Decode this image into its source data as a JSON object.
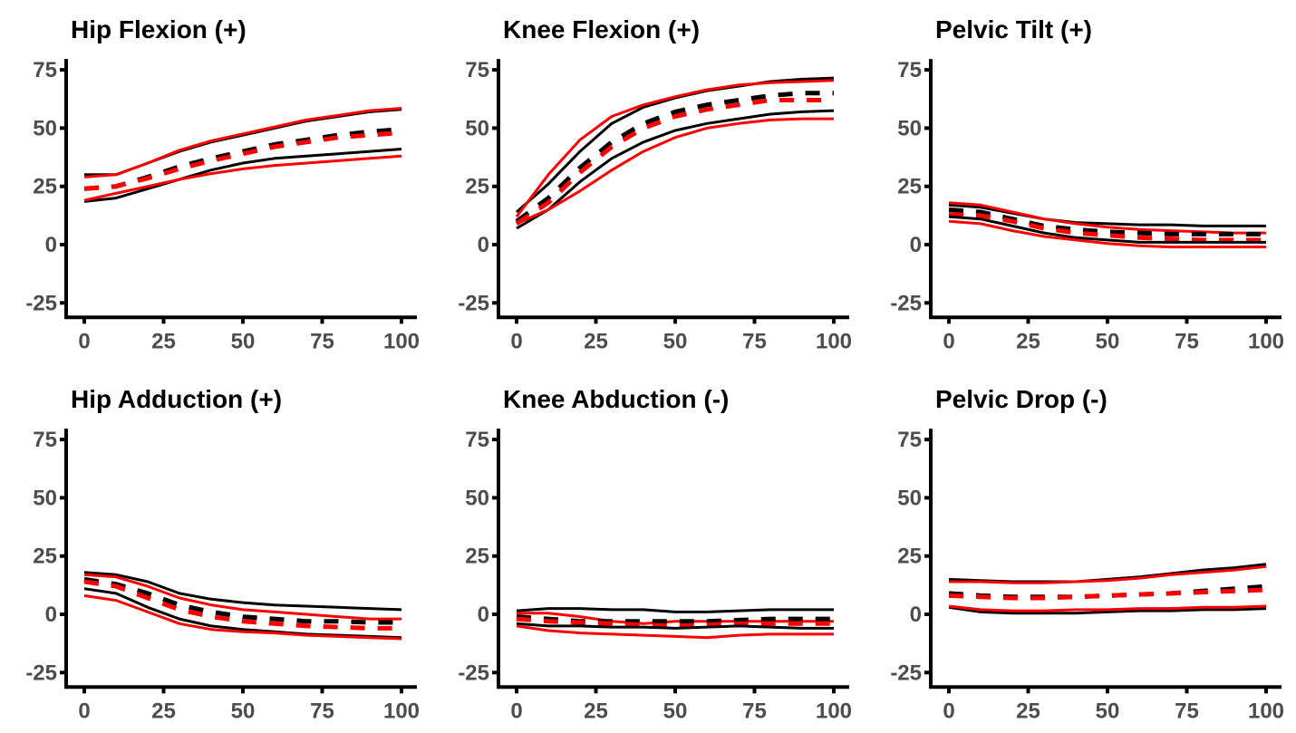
{
  "chart_data": [
    {
      "type": "line",
      "title": "Hip Flexion (+)",
      "xlim": [
        0,
        100
      ],
      "ylim": [
        -25,
        75
      ],
      "xticks": [
        "0",
        "25",
        "50",
        "75",
        "100"
      ],
      "yticks": [
        "-25",
        "0",
        "25",
        "50",
        "75"
      ],
      "x": [
        0,
        10,
        20,
        30,
        40,
        50,
        60,
        70,
        80,
        90,
        100
      ],
      "series": [
        {
          "color": "#000000",
          "style": "solid",
          "values": [
            30,
            30,
            35,
            40,
            44,
            47,
            50,
            53,
            55,
            57,
            58
          ]
        },
        {
          "color": "#ff0000",
          "style": "solid",
          "values": [
            29,
            30,
            35,
            40.5,
            44.5,
            47.5,
            50.5,
            53.5,
            55.5,
            57.5,
            58.5
          ]
        },
        {
          "color": "#000000",
          "style": "dashed",
          "values": [
            24,
            25,
            29,
            33.5,
            37,
            40,
            43,
            45,
            47,
            48.5,
            49.5
          ]
        },
        {
          "color": "#ff0000",
          "style": "dashed",
          "values": [
            24,
            25,
            28.5,
            32.5,
            36,
            39,
            42,
            44,
            46,
            47,
            48
          ]
        },
        {
          "color": "#000000",
          "style": "solid",
          "values": [
            18.5,
            20,
            24,
            28,
            32,
            35,
            37,
            38,
            39,
            40,
            41
          ]
        },
        {
          "color": "#ff0000",
          "style": "solid",
          "values": [
            19,
            22,
            25,
            28,
            30.5,
            32.5,
            34,
            35,
            36,
            37,
            38
          ]
        }
      ]
    },
    {
      "type": "line",
      "title": "Knee Flexion (+)",
      "xlim": [
        0,
        100
      ],
      "ylim": [
        -25,
        75
      ],
      "xticks": [
        "0",
        "25",
        "50",
        "75",
        "100"
      ],
      "yticks": [
        "-25",
        "0",
        "25",
        "50",
        "75"
      ],
      "x": [
        0,
        10,
        20,
        30,
        40,
        50,
        60,
        70,
        80,
        90,
        100
      ],
      "series": [
        {
          "color": "#000000",
          "style": "solid",
          "values": [
            14,
            26,
            40,
            52,
            59,
            63,
            66,
            68,
            70,
            71,
            71.5
          ]
        },
        {
          "color": "#ff0000",
          "style": "solid",
          "values": [
            12,
            30,
            45,
            55,
            60,
            63.5,
            66.5,
            68.5,
            69.5,
            70,
            70.5
          ]
        },
        {
          "color": "#000000",
          "style": "dashed",
          "values": [
            10,
            20,
            33,
            44,
            52,
            57,
            60,
            62,
            64,
            65,
            65
          ]
        },
        {
          "color": "#ff0000",
          "style": "dashed",
          "values": [
            9,
            18,
            31,
            42,
            50,
            55,
            58,
            60,
            62,
            62,
            62
          ]
        },
        {
          "color": "#000000",
          "style": "solid",
          "values": [
            7,
            15,
            27,
            37,
            44,
            49,
            52,
            54,
            56,
            57,
            57.5
          ]
        },
        {
          "color": "#ff0000",
          "style": "solid",
          "values": [
            9,
            15,
            23,
            32,
            40,
            46,
            50,
            52,
            53.5,
            54,
            54
          ]
        }
      ]
    },
    {
      "type": "line",
      "title": "Pelvic Tilt (+)",
      "xlim": [
        0,
        100
      ],
      "ylim": [
        -25,
        75
      ],
      "xticks": [
        "0",
        "25",
        "50",
        "75",
        "100"
      ],
      "yticks": [
        "-25",
        "0",
        "25",
        "50",
        "75"
      ],
      "x": [
        0,
        10,
        20,
        30,
        40,
        50,
        60,
        70,
        80,
        90,
        100
      ],
      "series": [
        {
          "color": "#000000",
          "style": "solid",
          "values": [
            17,
            16,
            13.5,
            11,
            9.5,
            9,
            8.5,
            8.5,
            8,
            8,
            8
          ]
        },
        {
          "color": "#ff0000",
          "style": "solid",
          "values": [
            18,
            17,
            14,
            11,
            9,
            7.5,
            6.5,
            6,
            5.5,
            5,
            5
          ]
        },
        {
          "color": "#000000",
          "style": "dashed",
          "values": [
            15,
            14,
            11,
            8,
            6.5,
            5.5,
            5,
            4.5,
            4.5,
            4.5,
            4.5
          ]
        },
        {
          "color": "#ff0000",
          "style": "dashed",
          "values": [
            13,
            12.5,
            10,
            7,
            5,
            4,
            3,
            2.5,
            2,
            2,
            2
          ]
        },
        {
          "color": "#000000",
          "style": "solid",
          "values": [
            12,
            11,
            8,
            5,
            3,
            2,
            1,
            1,
            1,
            1,
            1
          ]
        },
        {
          "color": "#ff0000",
          "style": "solid",
          "values": [
            10,
            9,
            6,
            3.5,
            2,
            0.5,
            -0.5,
            -1,
            -1,
            -1,
            -1
          ]
        }
      ]
    },
    {
      "type": "line",
      "title": "Hip Adduction (+)",
      "xlim": [
        0,
        100
      ],
      "ylim": [
        -25,
        75
      ],
      "xticks": [
        "0",
        "25",
        "50",
        "75",
        "100"
      ],
      "yticks": [
        "-25",
        "0",
        "25",
        "50",
        "75"
      ],
      "x": [
        0,
        10,
        20,
        30,
        40,
        50,
        60,
        70,
        80,
        90,
        100
      ],
      "series": [
        {
          "color": "#000000",
          "style": "solid",
          "values": [
            18,
            17,
            14,
            9,
            6.5,
            5,
            4,
            3.5,
            3,
            2.5,
            2
          ]
        },
        {
          "color": "#ff0000",
          "style": "solid",
          "values": [
            17,
            16,
            12,
            7,
            4,
            2,
            1,
            0,
            -1,
            -2,
            -2
          ]
        },
        {
          "color": "#000000",
          "style": "dashed",
          "values": [
            15,
            13,
            9,
            4,
            1,
            -1,
            -2,
            -3,
            -3,
            -3.5,
            -3.5
          ]
        },
        {
          "color": "#ff0000",
          "style": "dashed",
          "values": [
            14,
            12,
            7,
            2,
            -1,
            -3,
            -4,
            -5,
            -5.5,
            -6,
            -6
          ]
        },
        {
          "color": "#000000",
          "style": "solid",
          "values": [
            11,
            9,
            3,
            -2,
            -5,
            -6.5,
            -7.5,
            -8.5,
            -9,
            -9.5,
            -10
          ]
        },
        {
          "color": "#ff0000",
          "style": "solid",
          "values": [
            8,
            6,
            1,
            -4,
            -6.5,
            -7.5,
            -8,
            -9,
            -9.5,
            -10,
            -10.5
          ]
        }
      ]
    },
    {
      "type": "line",
      "title": "Knee Abduction (-)",
      "xlim": [
        0,
        100
      ],
      "ylim": [
        -25,
        75
      ],
      "xticks": [
        "0",
        "25",
        "50",
        "75",
        "100"
      ],
      "yticks": [
        "-25",
        "0",
        "25",
        "50",
        "75"
      ],
      "x": [
        0,
        10,
        20,
        30,
        40,
        50,
        60,
        70,
        80,
        90,
        100
      ],
      "series": [
        {
          "color": "#000000",
          "style": "solid",
          "values": [
            1.5,
            2.5,
            2.5,
            2,
            2,
            1,
            1,
            1.5,
            2,
            2,
            2
          ]
        },
        {
          "color": "#ff0000",
          "style": "solid",
          "values": [
            0.5,
            0.5,
            -1,
            -3,
            -4,
            -3,
            -3,
            -3,
            -3,
            -3,
            -3
          ]
        },
        {
          "color": "#000000",
          "style": "dashed",
          "values": [
            -1,
            -2,
            -3,
            -3,
            -3,
            -3,
            -3,
            -2.5,
            -2,
            -2,
            -2
          ]
        },
        {
          "color": "#ff0000",
          "style": "dashed",
          "values": [
            -2,
            -3,
            -3.5,
            -4,
            -4.5,
            -5,
            -4.5,
            -4,
            -4,
            -4,
            -4
          ]
        },
        {
          "color": "#000000",
          "style": "solid",
          "values": [
            -4,
            -5,
            -5,
            -5.5,
            -5.5,
            -6,
            -5.5,
            -5,
            -5.5,
            -6,
            -6
          ]
        },
        {
          "color": "#ff0000",
          "style": "solid",
          "values": [
            -5,
            -7,
            -8,
            -8.5,
            -9,
            -9.5,
            -10,
            -9,
            -8.5,
            -8.5,
            -8.5
          ]
        }
      ]
    },
    {
      "type": "line",
      "title": "Pelvic Drop (-)",
      "xlim": [
        0,
        100
      ],
      "ylim": [
        -25,
        75
      ],
      "xticks": [
        "0",
        "25",
        "50",
        "75",
        "100"
      ],
      "yticks": [
        "-25",
        "0",
        "25",
        "50",
        "75"
      ],
      "x": [
        0,
        10,
        20,
        30,
        40,
        50,
        60,
        70,
        80,
        90,
        100
      ],
      "series": [
        {
          "color": "#000000",
          "style": "solid",
          "values": [
            15,
            14.5,
            14,
            14,
            14,
            15,
            16,
            17.5,
            19,
            20,
            21.5
          ]
        },
        {
          "color": "#ff0000",
          "style": "solid",
          "values": [
            14,
            14,
            13.5,
            13.5,
            14,
            14.5,
            15.5,
            17,
            18,
            19,
            20.5
          ]
        },
        {
          "color": "#000000",
          "style": "dashed",
          "values": [
            9,
            8,
            7.5,
            7.5,
            7.5,
            8,
            8.5,
            9,
            10,
            11,
            12
          ]
        },
        {
          "color": "#ff0000",
          "style": "dashed",
          "values": [
            8,
            7.5,
            7,
            7,
            7.5,
            8,
            8.5,
            9,
            9.5,
            10,
            10.5
          ]
        },
        {
          "color": "#000000",
          "style": "solid",
          "values": [
            3,
            1,
            0.5,
            0.5,
            0.5,
            1,
            1.5,
            1.5,
            2,
            2,
            2.5
          ]
        },
        {
          "color": "#ff0000",
          "style": "solid",
          "values": [
            3.5,
            2,
            1.5,
            1.5,
            2,
            2,
            2.5,
            2.5,
            3,
            3,
            3.5
          ]
        }
      ]
    }
  ]
}
